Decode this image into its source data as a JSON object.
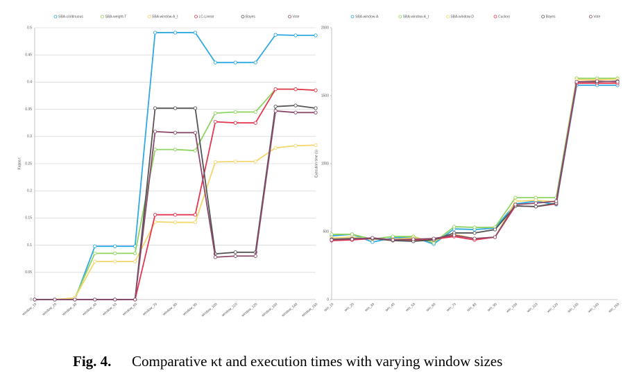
{
  "chart_data": [
    {
      "type": "line",
      "y_label": "Kappa t",
      "categories": [
        "window_10",
        "window_20",
        "window_30",
        "window_40",
        "window_50",
        "window_60",
        "window_70",
        "window_80",
        "window_90",
        "window_100",
        "window_110",
        "window_120",
        "window_130",
        "window_140",
        "window_150"
      ],
      "ylim": [
        0,
        0.5
      ],
      "yticks": [
        0,
        0.05,
        0.1,
        0.15,
        0.2,
        0.25,
        0.3,
        0.35,
        0.4,
        0.45,
        0.5
      ],
      "grid": true,
      "series": [
        {
          "name": "SBA-continuous",
          "color": "#2fa9e1",
          "values": [
            0,
            0,
            0,
            0.098,
            0.098,
            0.098,
            0.491,
            0.491,
            0.491,
            0.436,
            0.436,
            0.436,
            0.487,
            0.486,
            0.486
          ]
        },
        {
          "name": "SBA-weight-T",
          "color": "#8fd462",
          "values": [
            0,
            0,
            0.003,
            0.085,
            0.085,
            0.085,
            0.276,
            0.276,
            0.274,
            0.343,
            0.345,
            0.345,
            0.387,
            0.387,
            0.385
          ]
        },
        {
          "name": "SBA-window-A_t",
          "color": "#f3d66c",
          "values": [
            0,
            0,
            0.003,
            0.07,
            0.07,
            0.07,
            0.143,
            0.142,
            0.142,
            0.253,
            0.254,
            0.254,
            0.279,
            0.283,
            0.284
          ]
        },
        {
          "name": "LC-Linear",
          "color": "#e6354f",
          "values": [
            0,
            0,
            0,
            0,
            0,
            0,
            0.156,
            0.156,
            0.156,
            0.327,
            0.325,
            0.325,
            0.387,
            0.387,
            0.385
          ]
        },
        {
          "name": "Bayes",
          "color": "#555555",
          "values": [
            0,
            0,
            0,
            0,
            0,
            0,
            0.352,
            0.352,
            0.352,
            0.084,
            0.087,
            0.087,
            0.355,
            0.357,
            0.352
          ]
        },
        {
          "name": "Vote",
          "color": "#8b4a6c",
          "values": [
            0,
            0,
            0,
            0,
            0,
            0,
            0.309,
            0.307,
            0.307,
            0.078,
            0.08,
            0.08,
            0.347,
            0.344,
            0.344
          ]
        }
      ]
    },
    {
      "type": "line",
      "y_label": "Execution time (s)",
      "categories": [
        "win_10",
        "win_20",
        "win_30",
        "win_40",
        "win_50",
        "win_60",
        "win_70",
        "win_80",
        "win_90",
        "win_100",
        "win_110",
        "win_120",
        "win_130",
        "win_140",
        "win_150"
      ],
      "ylim": [
        0,
        2000
      ],
      "yticks": [
        0,
        500,
        1000,
        1500,
        2000
      ],
      "grid": false,
      "series": [
        {
          "name": "SBA-window-A",
          "color": "#2fa9e1",
          "values": [
            469,
            480,
            423,
            454,
            459,
            408,
            520,
            515,
            526,
            704,
            724,
            699,
            1577,
            1577,
            1577
          ]
        },
        {
          "name": "SBA-window-A_t",
          "color": "#8fd462",
          "values": [
            480,
            480,
            444,
            464,
            464,
            418,
            536,
            531,
            531,
            750,
            750,
            750,
            1628,
            1628,
            1628
          ]
        },
        {
          "name": "SBA-window-D",
          "color": "#f3d66c",
          "values": [
            454,
            459,
            444,
            444,
            454,
            434,
            480,
            449,
            459,
            724,
            730,
            719,
            1617,
            1617,
            1622
          ]
        },
        {
          "name": "Cuckoo",
          "color": "#e6354f",
          "values": [
            434,
            439,
            449,
            439,
            439,
            444,
            464,
            439,
            459,
            689,
            684,
            704,
            1592,
            1592,
            1592
          ]
        },
        {
          "name": "Bayes",
          "color": "#555555",
          "values": [
            444,
            449,
            449,
            434,
            429,
            439,
            490,
            490,
            515,
            689,
            684,
            709,
            1602,
            1602,
            1607
          ]
        },
        {
          "name": "Vote",
          "color": "#8b4a6c",
          "values": [
            439,
            444,
            454,
            439,
            444,
            449,
            474,
            449,
            459,
            699,
            709,
            724,
            1602,
            1607,
            1602
          ]
        }
      ]
    }
  ],
  "caption": {
    "label": "Fig. 4.",
    "text": "Comparative κt and execution times with varying window sizes"
  }
}
